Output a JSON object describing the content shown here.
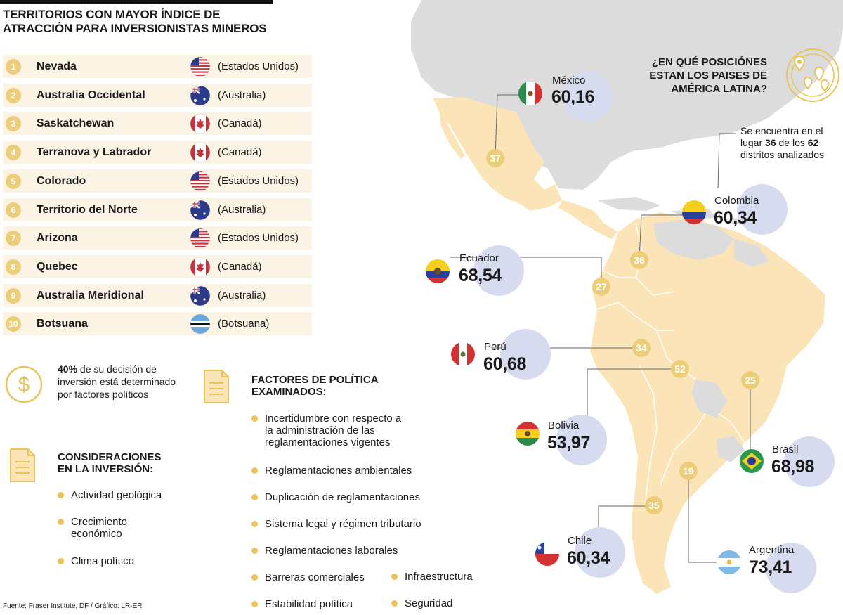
{
  "title": "TERRITORIOS CON MAYOR ÍNDICE DE ATRACCIÓN PARA INVERSIONISTAS MINEROS",
  "ranking": [
    {
      "rank": "1",
      "name": "Nevada",
      "country": "(Estados Unidos)",
      "flag": "us"
    },
    {
      "rank": "2",
      "name": "Australia Occidental",
      "country": "(Australia)",
      "flag": "au"
    },
    {
      "rank": "3",
      "name": "Saskatchewan",
      "country": "(Canadá)",
      "flag": "ca"
    },
    {
      "rank": "4",
      "name": "Terranova y Labrador",
      "country": "(Canadá)",
      "flag": "ca"
    },
    {
      "rank": "5",
      "name": "Colorado",
      "country": "(Estados Unidos)",
      "flag": "us"
    },
    {
      "rank": "6",
      "name": "Territorio del Norte",
      "country": "(Australia)",
      "flag": "au"
    },
    {
      "rank": "7",
      "name": "Arizona",
      "country": "(Estados Unidos)",
      "flag": "us"
    },
    {
      "rank": "8",
      "name": "Quebec",
      "country": "(Canadá)",
      "flag": "ca"
    },
    {
      "rank": "9",
      "name": "Australia Meridional",
      "country": "(Australia)",
      "flag": "au"
    },
    {
      "rank": "10",
      "name": "Botsuana",
      "country": "(Botsuana)",
      "flag": "bw"
    }
  ],
  "policy_share": {
    "value": "40%",
    "text": "de su decisión de inversión está determinado por factores políticos"
  },
  "considerations": {
    "heading": "CONSIDERACIONES EN LA INVERSIÓN:",
    "items": [
      "Actividad geológica",
      "Crecimiento económico",
      "Clima político"
    ]
  },
  "factors": {
    "heading": "FACTORES DE POLÍTICA EXAMINADOS:",
    "items": [
      "Incertidumbre con respecto a la administración de las reglamentaciones vigentes",
      "Reglamentaciones ambientales",
      "Duplicación de reglamentaciones",
      "Sistema legal y régimen tributario",
      "Reglamentaciones laborales",
      "Barreras comerciales",
      "Estabilidad política",
      "Infraestructura",
      "Seguridad"
    ]
  },
  "source": "Fuente: Fraser Institute, DF / Gráfico: LR-ER",
  "question": "¿EN QUÉ POSICIÓNES ESTAN LOS PAISES DE AMÉRICA LATINA?",
  "colombia_note": {
    "prefix": "Se encuentra en el lugar",
    "rank": "36",
    "middle": "de los",
    "total": "62",
    "suffix": "distritos analizados"
  },
  "countries": [
    {
      "id": "mexico",
      "name": "México",
      "score": "60,16",
      "position": "37",
      "flag": "mx"
    },
    {
      "id": "colombia",
      "name": "Colombia",
      "score": "60,34",
      "position": "36",
      "flag": "co"
    },
    {
      "id": "ecuador",
      "name": "Ecuador",
      "score": "68,54",
      "position": "27",
      "flag": "ec"
    },
    {
      "id": "peru",
      "name": "Perú",
      "score": "60,68",
      "position": "34",
      "flag": "pe"
    },
    {
      "id": "bolivia",
      "name": "Bolivia",
      "score": "53,97",
      "position": "52",
      "flag": "bo"
    },
    {
      "id": "brasil",
      "name": "Brasil",
      "score": "68,98",
      "position": "25",
      "flag": "br"
    },
    {
      "id": "chile",
      "name": "Chile",
      "score": "60,34",
      "position": "35",
      "flag": "cl"
    },
    {
      "id": "argentina",
      "name": "Argentina",
      "score": "73,41",
      "position": "19",
      "flag": "ar"
    }
  ],
  "colors": {
    "accent": "#eccd7a",
    "map_highlight": "#fbe5b8",
    "map_base": "#dcdcdc",
    "bubble": "#d6dbef"
  }
}
